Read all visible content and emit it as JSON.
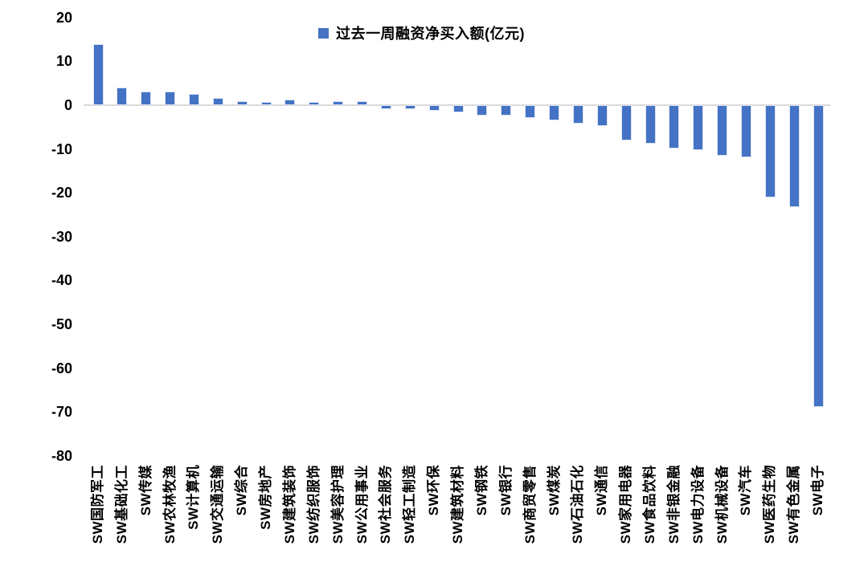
{
  "chart_data": {
    "type": "bar",
    "title": "",
    "legend": "过去一周融资净买入额(亿元)",
    "legend_position": "top-center",
    "grid": false,
    "bar_color": "#4472C4",
    "axis_line_color": "#D9D9D9",
    "ylim": [
      -80,
      20
    ],
    "yticks": [
      20,
      10,
      0,
      -10,
      -20,
      -30,
      -40,
      -50,
      -60,
      -70,
      -80
    ],
    "categories": [
      "SW国防军工",
      "SW基础化工",
      "SW传媒",
      "SW农林牧渔",
      "SW计算机",
      "SW交通运输",
      "SW综合",
      "SW房地产",
      "SW建筑装饰",
      "SW纺织服饰",
      "SW美容护理",
      "SW公用事业",
      "SW社会服务",
      "SW轻工制造",
      "SW环保",
      "SW建筑材料",
      "SW钢铁",
      "SW银行",
      "SW商贸零售",
      "SW煤炭",
      "SW石油石化",
      "SW通信",
      "SW家用电器",
      "SW食品饮料",
      "SW非银金融",
      "SW电力设备",
      "SW机械设备",
      "SW汽车",
      "SW医药生物",
      "SW有色金属",
      "SW电子"
    ],
    "values": [
      13.9,
      4.1,
      3.2,
      3.2,
      2.6,
      1.6,
      1.0,
      0.7,
      1.2,
      0.8,
      0.9,
      0.9,
      -0.9,
      -1.0,
      -1.2,
      -1.6,
      -2.4,
      -2.4,
      -3.0,
      -3.5,
      -4.3,
      -4.8,
      -8.1,
      -8.7,
      -9.9,
      -10.2,
      -11.6,
      -11.9,
      -21.1,
      -23.2,
      -68.9
    ]
  }
}
